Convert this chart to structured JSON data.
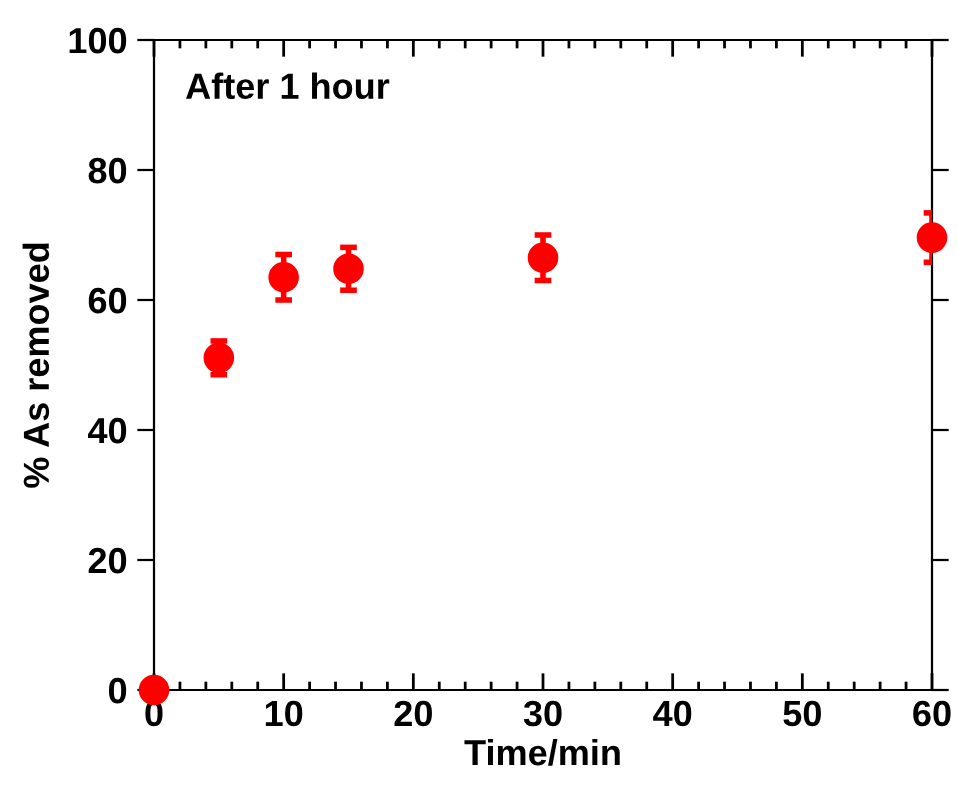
{
  "chart_data": {
    "type": "scatter",
    "xlabel": "Time/min",
    "ylabel": "% As removed",
    "annotations": [
      "After 1 hour"
    ],
    "x": [
      0,
      5,
      10,
      15,
      30,
      60
    ],
    "series": [
      {
        "color": "#ff0000",
        "values": [
          0,
          51.1,
          63.5,
          64.8,
          66.5,
          69.6
        ],
        "errors": [
          null,
          2.6,
          3.5,
          3.3,
          3.5,
          3.8
        ]
      }
    ],
    "xlim": [
      0,
      60
    ],
    "xticks": [
      0,
      10,
      20,
      30,
      40,
      50,
      60
    ],
    "ylim": [
      0,
      100
    ],
    "yticks": [
      0,
      20,
      40,
      60,
      80,
      100
    ],
    "marker": "circle",
    "grid": false,
    "legend": false
  }
}
